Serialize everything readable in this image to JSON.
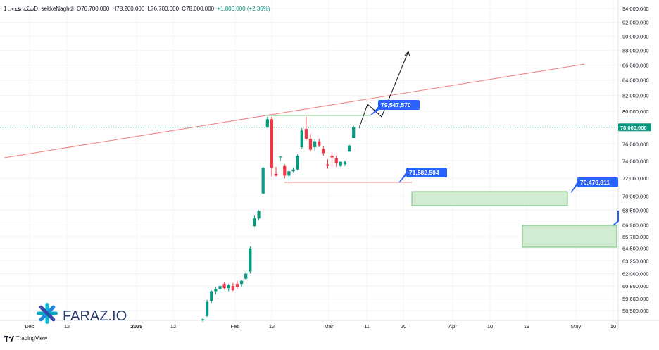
{
  "header": {
    "symbol_line": "سکه نقدی, 1D, sekkeNaghdi",
    "open_label": "O",
    "open": "76,700,000",
    "high_label": "H",
    "high": "78,200,000",
    "low_label": "L",
    "low": "76,700,000",
    "close_label": "C",
    "close": "78,000,000",
    "change": "+1,800,000 (+2.36%)"
  },
  "colors": {
    "up": "#089981",
    "down": "#f23645",
    "trendline": "#f08080",
    "zone_fill": "#cfecd0",
    "zone_stroke": "#4caf50",
    "callout": "#2962ff",
    "price_line": "#089981"
  },
  "logo": {
    "text": "FARAZ.IO",
    "icon": "asterisk-logo-icon"
  },
  "footer": {
    "brand": "TradingView",
    "icon": "tradingview-logo-icon"
  },
  "chart_data": {
    "type": "candlestick",
    "y_scale": "log",
    "ylim": [
      57500000,
      95000000
    ],
    "y_ticks": [
      "94,000,000",
      "92,000,000",
      "90,000,000",
      "88,000,000",
      "86,000,000",
      "84,000,000",
      "82,000,000",
      "80,000,000",
      "78,000,000",
      "76,000,000",
      "74,000,000",
      "72,000,000",
      "70,000,000",
      "68,500,000",
      "66,900,000",
      "65,700,000",
      "64,500,000",
      "63,250,000",
      "62,000,000",
      "60,800,000",
      "59,600,000",
      "58,500,000"
    ],
    "x_ticks": [
      "Dec",
      "12",
      "2025",
      "12",
      "Feb",
      "12",
      "Mar",
      "11",
      "20",
      "Apr",
      "10",
      "19",
      "May",
      "10"
    ],
    "last_price_label": "78,000,000",
    "candles": [
      {
        "o": 57600000,
        "h": 57800000,
        "l": 57500000,
        "c": 57700000
      },
      {
        "o": 58000000,
        "h": 59500000,
        "l": 57900000,
        "c": 59300000
      },
      {
        "o": 59400000,
        "h": 60400000,
        "l": 59200000,
        "c": 60300000
      },
      {
        "o": 60300000,
        "h": 60700000,
        "l": 60000000,
        "c": 60500000
      },
      {
        "o": 60500000,
        "h": 60900000,
        "l": 60200000,
        "c": 60800000
      },
      {
        "o": 61000000,
        "h": 61200000,
        "l": 60500000,
        "c": 60600000
      },
      {
        "o": 60600000,
        "h": 61000000,
        "l": 60300000,
        "c": 60900000
      },
      {
        "o": 60800000,
        "h": 61100000,
        "l": 60300000,
        "c": 60400000
      },
      {
        "o": 61000000,
        "h": 61300000,
        "l": 60500000,
        "c": 60700000
      },
      {
        "o": 61000000,
        "h": 61400000,
        "l": 60700000,
        "c": 61300000
      },
      {
        "o": 61500000,
        "h": 62200000,
        "l": 61400000,
        "c": 62000000
      },
      {
        "o": 62200000,
        "h": 64700000,
        "l": 62000000,
        "c": 64500000
      },
      {
        "o": 66800000,
        "h": 67900000,
        "l": 66700000,
        "c": 67600000
      },
      {
        "o": 67600000,
        "h": 68500000,
        "l": 67400000,
        "c": 68400000
      },
      {
        "o": 70300000,
        "h": 73300000,
        "l": 70200000,
        "c": 73200000
      },
      {
        "o": 78000000,
        "h": 79300000,
        "l": 77900000,
        "c": 79000000
      },
      {
        "o": 79000000,
        "h": 79300000,
        "l": 72200000,
        "c": 73200000
      },
      {
        "o": 72500000,
        "h": 73300000,
        "l": 72200000,
        "c": 72300000
      },
      {
        "o": 74400000,
        "h": 74600000,
        "l": 74000000,
        "c": 74500000
      },
      {
        "o": 73400000,
        "h": 73600000,
        "l": 72000000,
        "c": 72300000
      },
      {
        "o": 72300000,
        "h": 72800000,
        "l": 71600000,
        "c": 72800000
      },
      {
        "o": 72800000,
        "h": 73200000,
        "l": 72700000,
        "c": 73000000
      },
      {
        "o": 73000000,
        "h": 74800000,
        "l": 72900000,
        "c": 74600000
      },
      {
        "o": 75600000,
        "h": 77900000,
        "l": 75400000,
        "c": 77600000
      },
      {
        "o": 77800000,
        "h": 79300000,
        "l": 76400000,
        "c": 76600000
      },
      {
        "o": 76600000,
        "h": 77200000,
        "l": 75100000,
        "c": 75300000
      },
      {
        "o": 75600000,
        "h": 76600000,
        "l": 75200000,
        "c": 76300000
      },
      {
        "o": 76300000,
        "h": 76600000,
        "l": 75600000,
        "c": 75800000
      },
      {
        "o": 75400000,
        "h": 75700000,
        "l": 74600000,
        "c": 74900000
      },
      {
        "o": 73600000,
        "h": 74200000,
        "l": 73100000,
        "c": 73400000
      },
      {
        "o": 74600000,
        "h": 75000000,
        "l": 73200000,
        "c": 74400000
      },
      {
        "o": 74300000,
        "h": 74600000,
        "l": 73300000,
        "c": 73700000
      },
      {
        "o": 73400000,
        "h": 73900000,
        "l": 73300000,
        "c": 73900000
      },
      {
        "o": 73600000,
        "h": 74000000,
        "l": 73400000,
        "c": 73900000
      },
      {
        "o": 75100000,
        "h": 75900000,
        "l": 75000000,
        "c": 75800000
      },
      {
        "o": 76700000,
        "h": 78200000,
        "l": 76700000,
        "c": 78000000
      }
    ],
    "annotations": [
      {
        "type": "callout",
        "text": "79,547,570"
      },
      {
        "type": "callout",
        "text": "71,582,504"
      },
      {
        "type": "callout",
        "text": "70,476,811"
      }
    ]
  }
}
